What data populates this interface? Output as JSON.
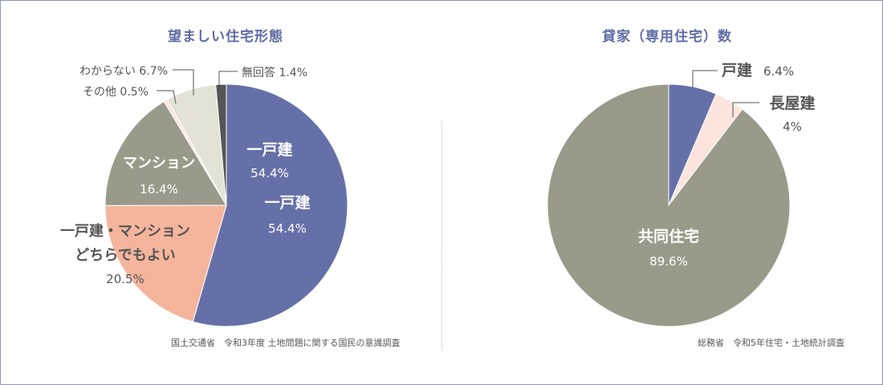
{
  "chart_data": [
    {
      "type": "pie",
      "title": "望ましい住宅形態",
      "slices": [
        {
          "label": "一戸建",
          "value": 54.4,
          "value_text": "54.4%",
          "color": "#6670a8",
          "label_text_color": "#ffffff"
        },
        {
          "label": "一戸建・マンション\nどちらでもよい",
          "value": 20.5,
          "value_text": "20.5%",
          "color": "#f5b59d",
          "label_text_color": "#555555"
        },
        {
          "label": "マンション",
          "value": 16.4,
          "value_text": "16.4%",
          "color": "#9a9a8a",
          "label_text_color": "#ffffff"
        },
        {
          "label": "その他",
          "value": 0.5,
          "value_text": "0.5%",
          "color": "#fde4dc",
          "label_text_color": "#555555"
        },
        {
          "label": "わからない",
          "value": 6.7,
          "value_text": "6.7%",
          "color": "#e2e2d5",
          "label_text_color": "#555555"
        },
        {
          "label": "無回答",
          "value": 1.4,
          "value_text": "1.4%",
          "color": "#555555",
          "label_text_color": "#555555"
        }
      ],
      "extra_label": {
        "label": "一戸建",
        "value_text": "54.4%"
      },
      "source": "国土交通省　令和3年度 土地問題に関する国民の意識調査"
    },
    {
      "type": "pie",
      "title": "貸家（専用住宅）数",
      "slices": [
        {
          "label": "戸建",
          "value": 6.4,
          "value_text": "6.4%",
          "color": "#6670a8",
          "label_text_color": "#555555"
        },
        {
          "label": "長屋建",
          "value": 4,
          "value_text": "4%",
          "color": "#fde4dc",
          "label_text_color": "#555555"
        },
        {
          "label": "共同住宅",
          "value": 89.6,
          "value_text": "89.6%",
          "color": "#9a9a8a",
          "label_text_color": "#ffffff"
        }
      ],
      "source": "総務省　令和5年住宅・土地統計調査"
    }
  ]
}
